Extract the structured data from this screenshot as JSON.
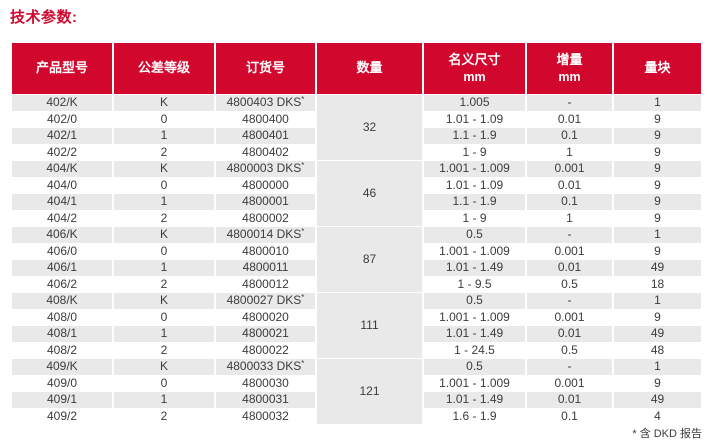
{
  "page": {
    "title": "技术参数:",
    "footnote": "* 含 DKD 报告"
  },
  "colors": {
    "header_red": "#D2072D",
    "stripe_gray": "#E9E9E9",
    "text_dark": "#3C3C3C"
  },
  "table": {
    "headers": [
      {
        "label": "产品型号",
        "sub": ""
      },
      {
        "label": "公差等级",
        "sub": ""
      },
      {
        "label": "订货号",
        "sub": ""
      },
      {
        "label": "数量",
        "sub": ""
      },
      {
        "label": "名义尺寸",
        "sub": "mm"
      },
      {
        "label": "增量",
        "sub": "mm"
      },
      {
        "label": "量块",
        "sub": ""
      }
    ],
    "groups": [
      {
        "quantity": "32",
        "rows": [
          {
            "model": "402/K",
            "grade": "K",
            "order": "4800403 DKS*",
            "nominal": "1.005",
            "increment": "-",
            "blocks": "1"
          },
          {
            "model": "402/0",
            "grade": "0",
            "order": "4800400",
            "nominal": "1.01 - 1.09",
            "increment": "0.01",
            "blocks": "9"
          },
          {
            "model": "402/1",
            "grade": "1",
            "order": "4800401",
            "nominal": "1.1 - 1.9",
            "increment": "0.1",
            "blocks": "9"
          },
          {
            "model": "402/2",
            "grade": "2",
            "order": "4800402",
            "nominal": "1 - 9",
            "increment": "1",
            "blocks": "9"
          }
        ]
      },
      {
        "quantity": "46",
        "rows": [
          {
            "model": "404/K",
            "grade": "K",
            "order": "4800003 DKS*",
            "nominal": "1.001 - 1.009",
            "increment": "0.001",
            "blocks": "9"
          },
          {
            "model": "404/0",
            "grade": "0",
            "order": "4800000",
            "nominal": "1.01 - 1.09",
            "increment": "0.01",
            "blocks": "9"
          },
          {
            "model": "404/1",
            "grade": "1",
            "order": "4800001",
            "nominal": "1.1 - 1.9",
            "increment": "0.1",
            "blocks": "9"
          },
          {
            "model": "404/2",
            "grade": "2",
            "order": "4800002",
            "nominal": "1 - 9",
            "increment": "1",
            "blocks": "9"
          }
        ]
      },
      {
        "quantity": "87",
        "rows": [
          {
            "model": "406/K",
            "grade": "K",
            "order": "4800014 DKS*",
            "nominal": "0.5",
            "increment": "-",
            "blocks": "1"
          },
          {
            "model": "406/0",
            "grade": "0",
            "order": "4800010",
            "nominal": "1.001 - 1.009",
            "increment": "0.001",
            "blocks": "9"
          },
          {
            "model": "406/1",
            "grade": "1",
            "order": "4800011",
            "nominal": "1.01 - 1.49",
            "increment": "0.01",
            "blocks": "49"
          },
          {
            "model": "406/2",
            "grade": "2",
            "order": "4800012",
            "nominal": "1 - 9.5",
            "increment": "0.5",
            "blocks": "18"
          }
        ]
      },
      {
        "quantity": "111",
        "rows": [
          {
            "model": "408/K",
            "grade": "K",
            "order": "4800027 DKS*",
            "nominal": "0.5",
            "increment": "-",
            "blocks": "1"
          },
          {
            "model": "408/0",
            "grade": "0",
            "order": "4800020",
            "nominal": "1.001 - 1.009",
            "increment": "0.001",
            "blocks": "9"
          },
          {
            "model": "408/1",
            "grade": "1",
            "order": "4800021",
            "nominal": "1.01 - 1.49",
            "increment": "0.01",
            "blocks": "49"
          },
          {
            "model": "408/2",
            "grade": "2",
            "order": "4800022",
            "nominal": "1 - 24.5",
            "increment": "0.5",
            "blocks": "48"
          }
        ]
      },
      {
        "quantity": "121",
        "rows": [
          {
            "model": "409/K",
            "grade": "K",
            "order": "4800033 DKS*",
            "nominal": "0.5",
            "increment": "-",
            "blocks": "1"
          },
          {
            "model": "409/0",
            "grade": "0",
            "order": "4800030",
            "nominal": "1.001 - 1.009",
            "increment": "0.001",
            "blocks": "9"
          },
          {
            "model": "409/1",
            "grade": "1",
            "order": "4800031",
            "nominal": "1.01 - 1.49",
            "increment": "0.01",
            "blocks": "49"
          },
          {
            "model": "409/2",
            "grade": "2",
            "order": "4800032",
            "nominal": "1.6 - 1.9",
            "increment": "0.1",
            "blocks": "4"
          }
        ]
      }
    ]
  }
}
